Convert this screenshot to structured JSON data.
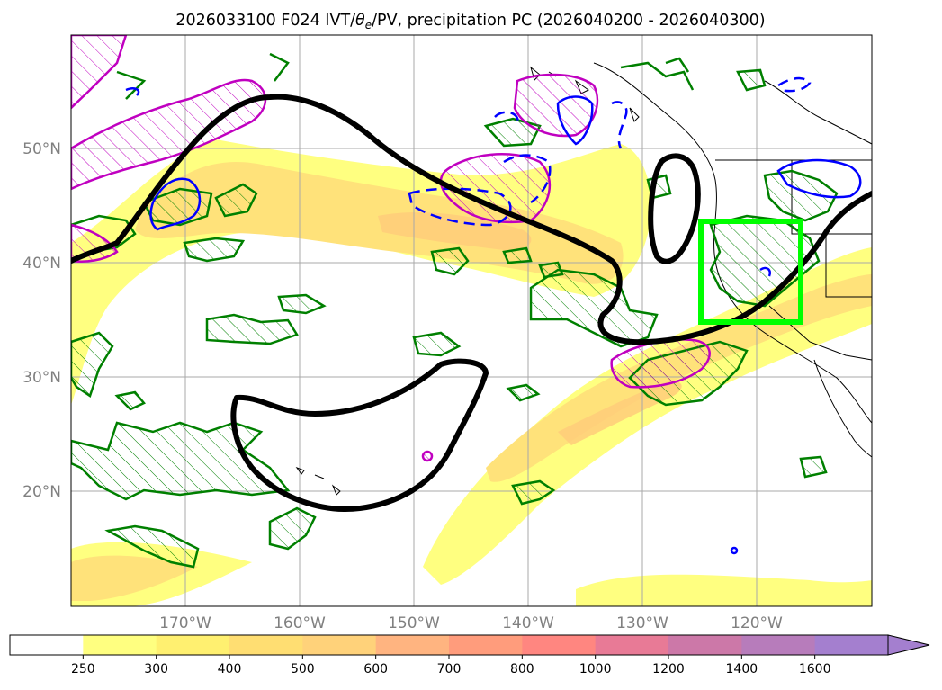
{
  "title": {
    "prefix": "2026033100 F024 IVT/",
    "theta": "θ",
    "sub": "e",
    "suffix": "/PV, precipitation PC (2026040200 - 2026040300)"
  },
  "axes": {
    "lat_labels": [
      "50°N",
      "40°N",
      "30°N",
      "20°N"
    ],
    "lon_labels": [
      "170°W",
      "160°W",
      "150°W",
      "140°W",
      "130°W",
      "120°W"
    ],
    "lat_range": [
      10,
      60
    ],
    "lon_range": [
      -180,
      -110
    ],
    "grid": true
  },
  "colorbar": {
    "levels": [
      "250",
      "300",
      "400",
      "500",
      "600",
      "700",
      "800",
      "1000",
      "1200",
      "1400",
      "1600"
    ],
    "colors": [
      "#ffffff",
      "#ffff80",
      "#fff070",
      "#ffde72",
      "#ffd27a",
      "#ffb480",
      "#ff9c7c",
      "#ff8680",
      "#e87a96",
      "#cc78a8",
      "#b77cbb",
      "#a47fcf"
    ],
    "extend": "max"
  },
  "colors": {
    "ivt_light": "#ffff80",
    "ivt_mid": "#ffe27a",
    "ivt_high": "#ffcc7a",
    "theta_contour": "#000000",
    "precip_pc": "#008000",
    "pv_pos": "#c000c0",
    "pv_neg": "#0000ff",
    "target_box": "#00ff00",
    "coastline": "#000000"
  }
}
